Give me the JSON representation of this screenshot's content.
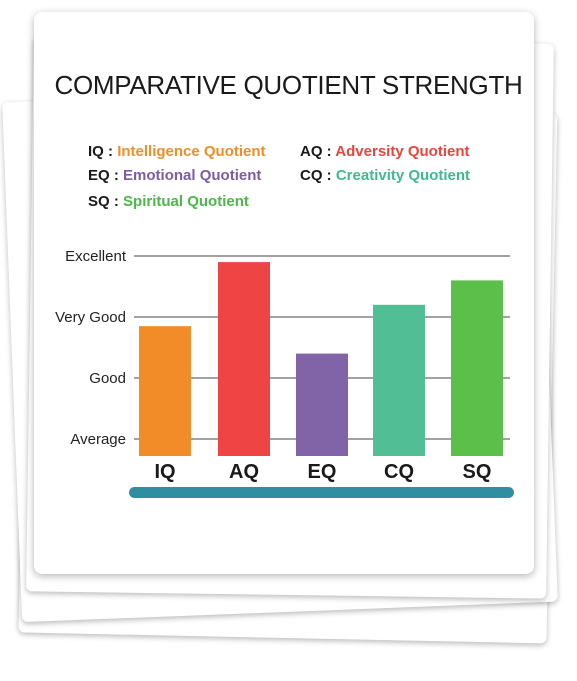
{
  "title": "COMPARATIVE QUOTIENT STRENGTH",
  "legend": [
    {
      "abbr": "IQ",
      "sep": ":",
      "label": "Intelligence Quotient",
      "color": "#f28c28"
    },
    {
      "abbr": "AQ",
      "sep": ":",
      "label": "Adversity Quotient",
      "color": "#e8453c"
    },
    {
      "abbr": "EQ",
      "sep": ":",
      "label": "Emotional Quotient",
      "color": "#7d5ba6"
    },
    {
      "abbr": "CQ",
      "sep": ":",
      "label": "Creativity Quotient",
      "color": "#3fb98f"
    },
    {
      "abbr": "SQ",
      "sep": ":",
      "label": "Spiritual Quotient",
      "color": "#4cb848"
    }
  ],
  "chart_data": {
    "type": "bar",
    "title": "COMPARATIVE QUOTIENT STRENGTH",
    "categories": [
      "IQ",
      "AQ",
      "EQ",
      "CQ",
      "SQ"
    ],
    "values": [
      1.85,
      2.9,
      1.4,
      2.2,
      2.6
    ],
    "colors": [
      "#f28c28",
      "#ef4444",
      "#8163a7",
      "#52be96",
      "#5cbf4a"
    ],
    "yticks": [
      {
        "value": 0,
        "label": "Average"
      },
      {
        "value": 1,
        "label": "Good"
      },
      {
        "value": 2,
        "label": "Very Good"
      },
      {
        "value": 3,
        "label": "Excellent"
      }
    ],
    "ylim": [
      0,
      3
    ],
    "grid": true,
    "axis_bar_color": "#2f8ea0"
  }
}
